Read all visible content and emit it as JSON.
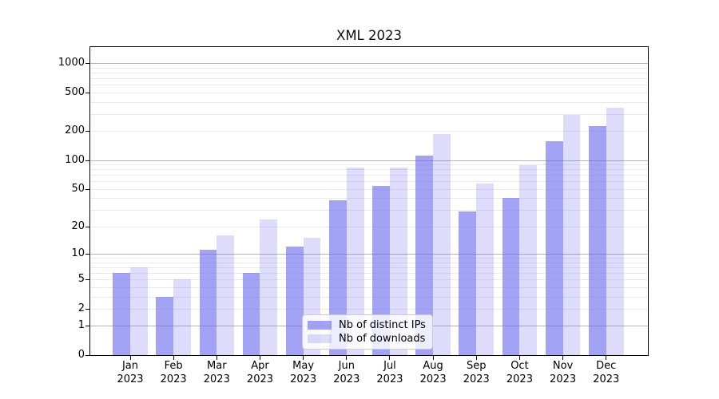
{
  "title": "XML 2023",
  "chart_data": {
    "type": "bar",
    "title": "XML 2023",
    "categories": [
      "Jan",
      "Feb",
      "Mar",
      "Apr",
      "May",
      "Jun",
      "Jul",
      "Aug",
      "Sep",
      "Oct",
      "Nov",
      "Dec"
    ],
    "year": "2023",
    "series": [
      {
        "name": "Nb of distinct IPs",
        "values": [
          6,
          3,
          11,
          6,
          12,
          38,
          54,
          111,
          29,
          40,
          156,
          226
        ]
      },
      {
        "name": "Nb of downloads",
        "values": [
          7,
          5,
          16,
          24,
          15,
          84,
          84,
          187,
          57,
          89,
          294,
          350
        ]
      }
    ],
    "xlabel": "",
    "ylabel": "",
    "yscale": "log1p",
    "yticks": [
      0,
      1,
      2,
      5,
      10,
      20,
      50,
      100,
      200,
      500,
      1000
    ],
    "ylim": [
      0,
      1466
    ],
    "grid": true,
    "legend_position": "lower-center"
  },
  "colors": {
    "ips_fill": "rgba(102,102,238,0.6)",
    "downloads_fill": "rgba(102,102,238,0.22)",
    "grid_major": "#b4b4b4",
    "grid_minor": "#eaeaee",
    "axis": "#000000",
    "legend_border": "#cccccc"
  }
}
